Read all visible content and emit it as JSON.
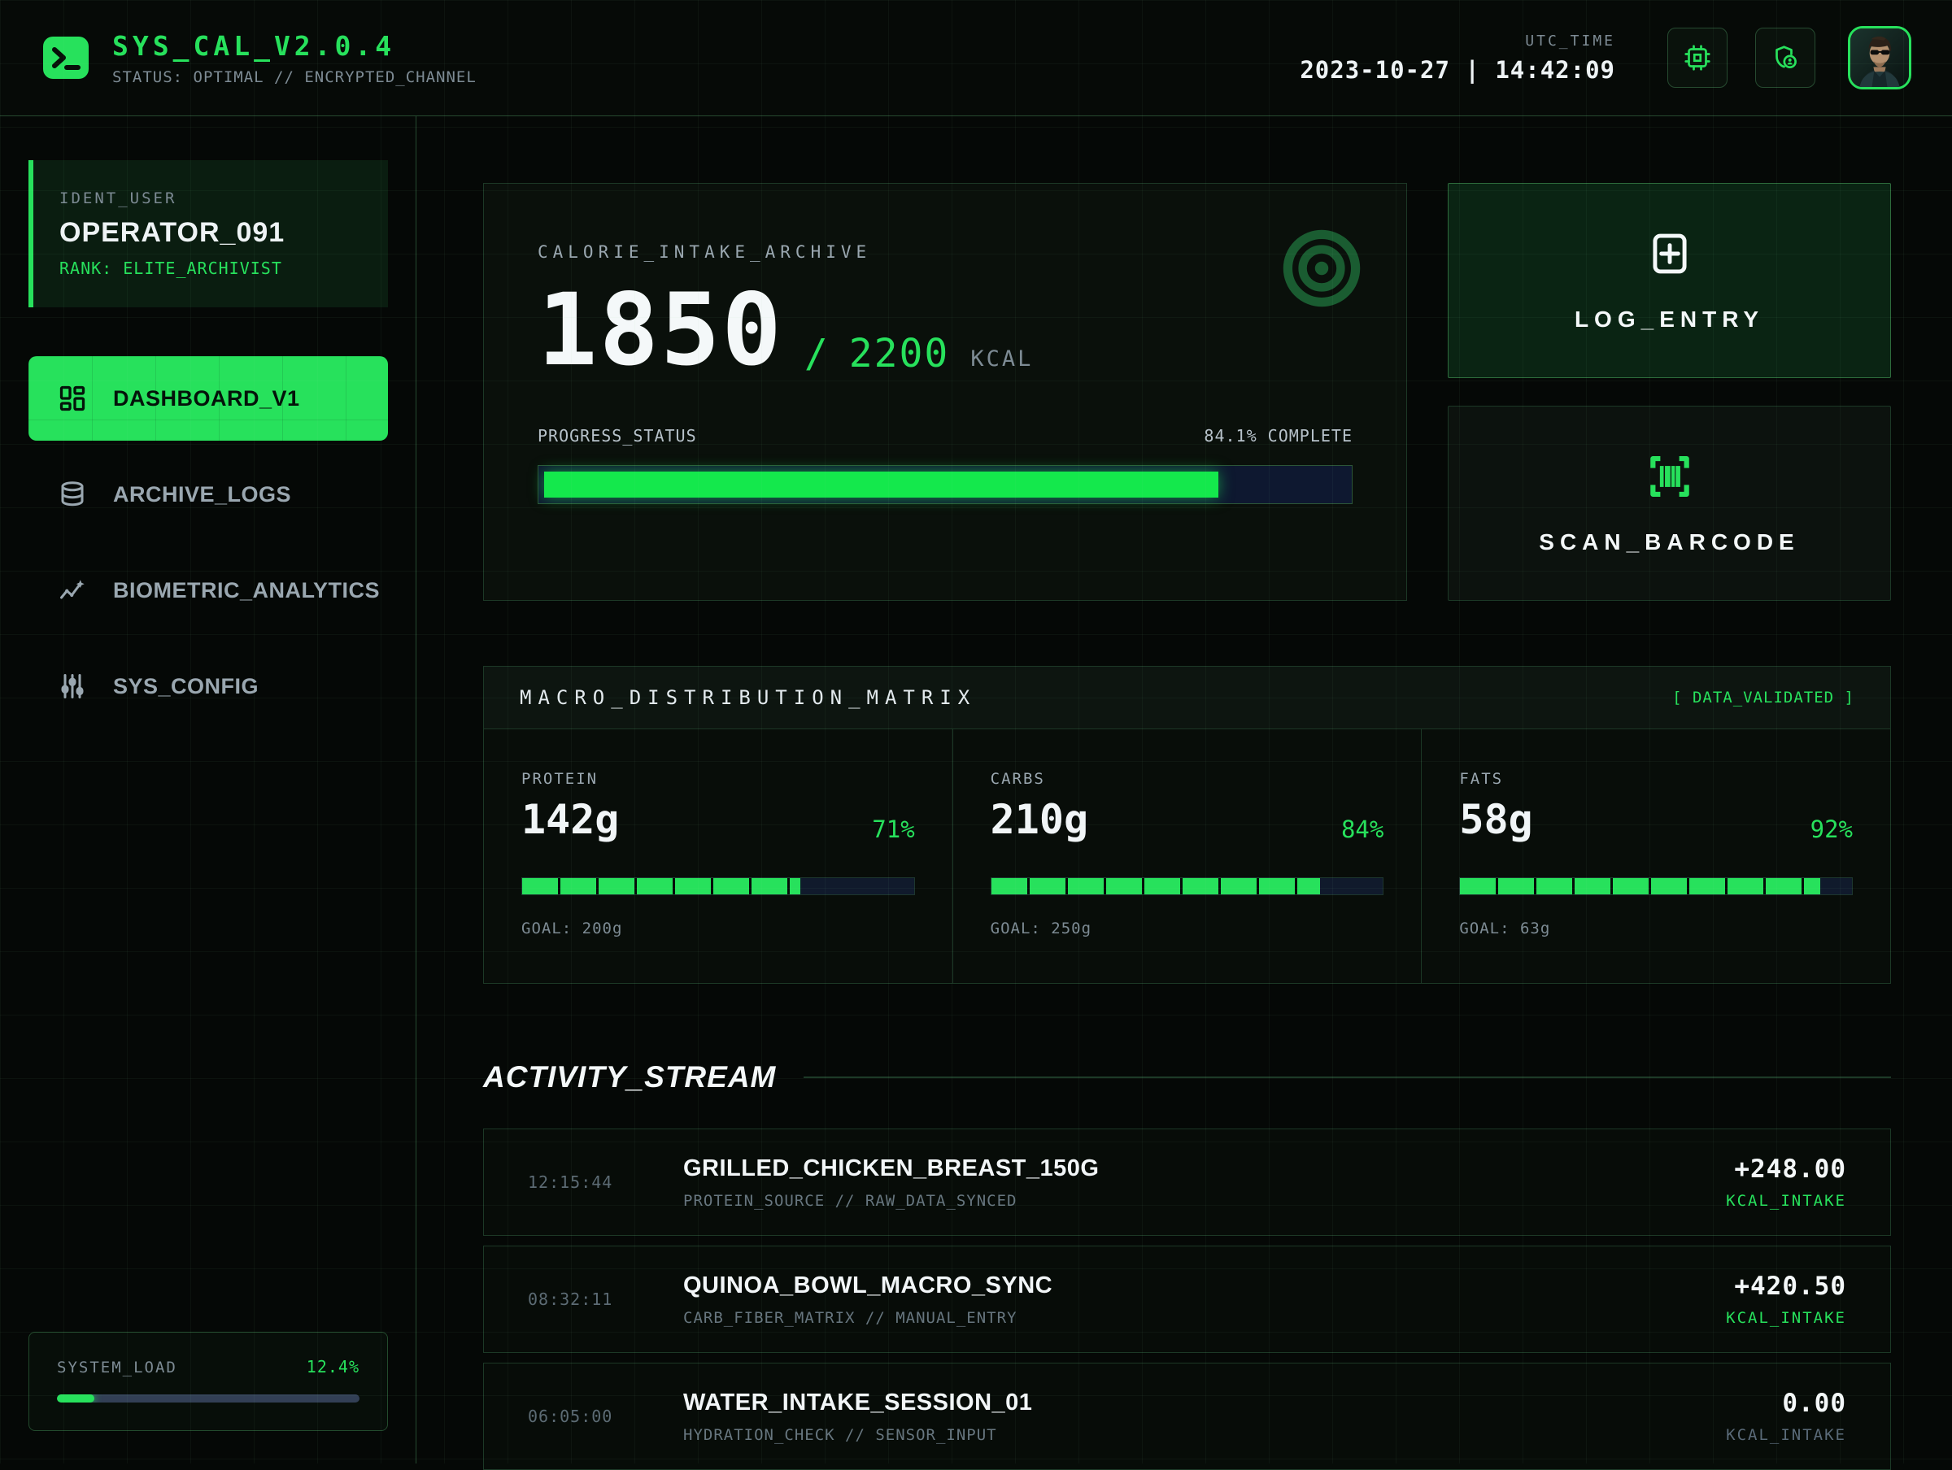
{
  "colors": {
    "accent": "#27e15c",
    "target_icon": "#1a5c31",
    "progress_fill": "#14e84c"
  },
  "app": {
    "title": "SYS_CAL_V2.0.4",
    "status_line": "STATUS: OPTIMAL // ENCRYPTED_CHANNEL"
  },
  "header": {
    "utc_label": "UTC_TIME",
    "datetime": "2023-10-27 | 14:42:09",
    "icons": [
      "cpu-icon",
      "shield-user-icon",
      "avatar"
    ]
  },
  "sidebar": {
    "user": {
      "label": "IDENT_USER",
      "name": "OPERATOR_091",
      "rank": "RANK: ELITE_ARCHIVIST"
    },
    "nav": [
      {
        "label": "DASHBOARD_V1",
        "icon": "dashboard-icon",
        "active": true
      },
      {
        "label": "ARCHIVE_LOGS",
        "icon": "database-icon",
        "active": false
      },
      {
        "label": "BIOMETRIC_ANALYTICS",
        "icon": "analytics-icon",
        "active": false
      },
      {
        "label": "SYS_CONFIG",
        "icon": "sliders-icon",
        "active": false
      }
    ],
    "system_load": {
      "label": "SYSTEM_LOAD",
      "value": "12.4%",
      "percent": 12.4
    }
  },
  "calorie": {
    "title": "CALORIE_INTAKE_ARCHIVE",
    "current": "1850",
    "separator": "/",
    "goal": "2200",
    "unit": "KCAL",
    "icon": "target-icon",
    "progress_label": "PROGRESS_STATUS",
    "progress_status": "84.1% COMPLETE",
    "percent": 84.1
  },
  "actions": {
    "log_entry": {
      "label": "LOG_ENTRY",
      "icon": "plus-square-icon"
    },
    "scan_barcode": {
      "label": "SCAN_BARCODE",
      "icon": "barcode-icon"
    }
  },
  "macros": {
    "title": "MACRO_DISTRIBUTION_MATRIX",
    "badge": "[ DATA_VALIDATED ]",
    "items": [
      {
        "label": "PROTEIN",
        "value": "142g",
        "pct_label": "71%",
        "percent": 71,
        "goal": "GOAL: 200g"
      },
      {
        "label": "CARBS",
        "value": "210g",
        "pct_label": "84%",
        "percent": 84,
        "goal": "GOAL: 250g"
      },
      {
        "label": "FATS",
        "value": "58g",
        "pct_label": "92%",
        "percent": 92,
        "goal": "GOAL: 63g"
      }
    ]
  },
  "activity": {
    "title": "ACTIVITY_STREAM",
    "rows": [
      {
        "time": "12:15:44",
        "title": "GRILLED_CHICKEN_BREAST_150G",
        "subtitle": "PROTEIN_SOURCE // RAW_DATA_SYNCED",
        "value": "+248.00",
        "value_label": "KCAL_INTAKE",
        "highlight": true
      },
      {
        "time": "08:32:11",
        "title": "QUINOA_BOWL_MACRO_SYNC",
        "subtitle": "CARB_FIBER_MATRIX // MANUAL_ENTRY",
        "value": "+420.50",
        "value_label": "KCAL_INTAKE",
        "highlight": true
      },
      {
        "time": "06:05:00",
        "title": "WATER_INTAKE_SESSION_01",
        "subtitle": "HYDRATION_CHECK // SENSOR_INPUT",
        "value": "0.00",
        "value_label": "KCAL_INTAKE",
        "highlight": false
      }
    ]
  }
}
